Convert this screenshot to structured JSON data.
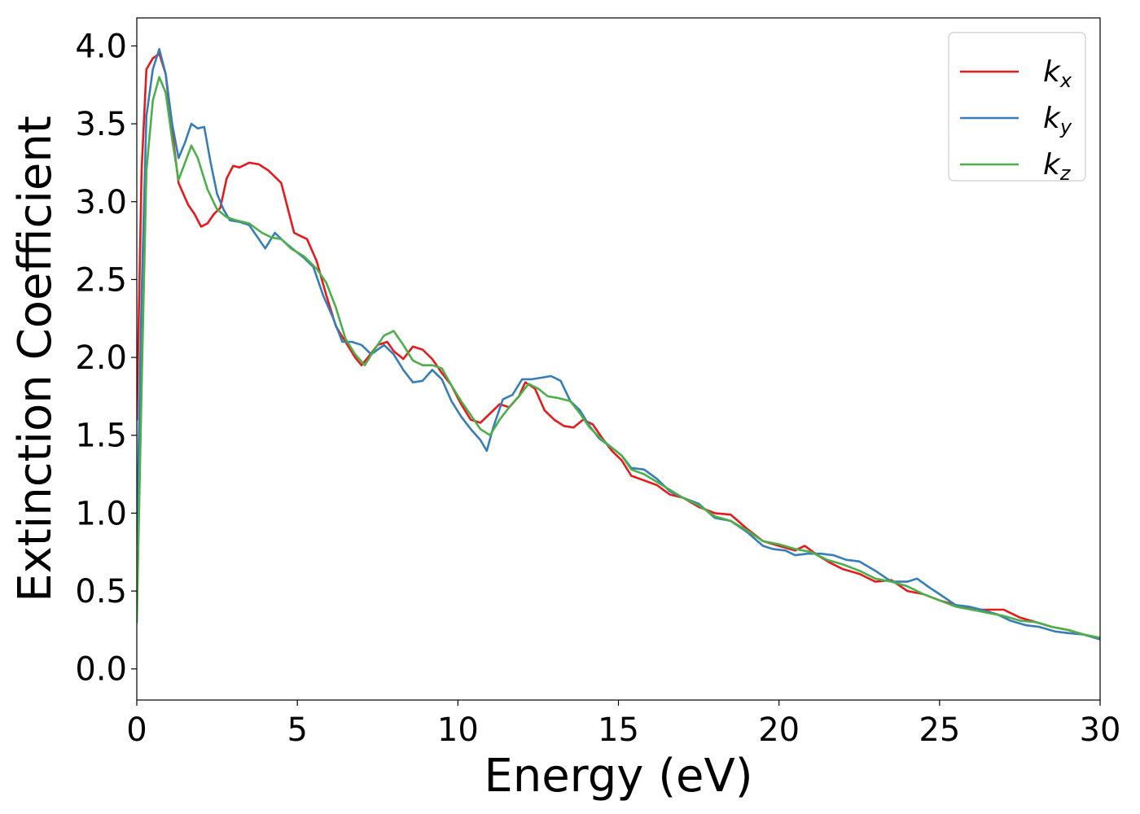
{
  "chart_data": {
    "type": "line",
    "title": "",
    "xlabel": "Energy (eV)",
    "ylabel": "Extinction Coefficient",
    "xlim": [
      0,
      30
    ],
    "ylim": [
      -0.2,
      4.18
    ],
    "xticks": [
      0,
      5,
      10,
      15,
      20,
      25,
      30
    ],
    "xtick_labels": [
      "0",
      "5",
      "10",
      "15",
      "20",
      "25",
      "30"
    ],
    "yticks": [
      0.0,
      0.5,
      1.0,
      1.5,
      2.0,
      2.5,
      3.0,
      3.5,
      4.0
    ],
    "ytick_labels": [
      "0.0",
      "0.5",
      "1.0",
      "1.5",
      "2.0",
      "2.5",
      "3.0",
      "3.5",
      "4.0"
    ],
    "grid": false,
    "legend_position": "top-right",
    "series": [
      {
        "name": "kx",
        "label_main": "k",
        "label_sub": "x",
        "color": "#e41a1c",
        "points": [
          [
            0,
            1.6
          ],
          [
            0.15,
            3.2
          ],
          [
            0.3,
            3.85
          ],
          [
            0.5,
            3.92
          ],
          [
            0.7,
            3.95
          ],
          [
            0.9,
            3.82
          ],
          [
            1.1,
            3.45
          ],
          [
            1.3,
            3.12
          ],
          [
            1.6,
            2.98
          ],
          [
            1.8,
            2.92
          ],
          [
            2.0,
            2.84
          ],
          [
            2.2,
            2.86
          ],
          [
            2.4,
            2.92
          ],
          [
            2.6,
            2.96
          ],
          [
            2.8,
            3.15
          ],
          [
            3.0,
            3.23
          ],
          [
            3.2,
            3.22
          ],
          [
            3.5,
            3.25
          ],
          [
            3.8,
            3.24
          ],
          [
            4.1,
            3.2
          ],
          [
            4.3,
            3.16
          ],
          [
            4.5,
            3.12
          ],
          [
            4.7,
            2.96
          ],
          [
            4.9,
            2.8
          ],
          [
            5.1,
            2.78
          ],
          [
            5.3,
            2.76
          ],
          [
            5.6,
            2.62
          ],
          [
            5.9,
            2.4
          ],
          [
            6.2,
            2.2
          ],
          [
            6.5,
            2.1
          ],
          [
            6.8,
            2.0
          ],
          [
            7.0,
            1.95
          ],
          [
            7.2,
            2.0
          ],
          [
            7.5,
            2.08
          ],
          [
            7.8,
            2.1
          ],
          [
            8.0,
            2.04
          ],
          [
            8.3,
            1.99
          ],
          [
            8.6,
            2.07
          ],
          [
            8.9,
            2.05
          ],
          [
            9.2,
            1.99
          ],
          [
            9.5,
            1.9
          ],
          [
            9.8,
            1.82
          ],
          [
            10.1,
            1.7
          ],
          [
            10.4,
            1.6
          ],
          [
            10.7,
            1.58
          ],
          [
            11.0,
            1.64
          ],
          [
            11.3,
            1.7
          ],
          [
            11.6,
            1.68
          ],
          [
            11.9,
            1.75
          ],
          [
            12.1,
            1.84
          ],
          [
            12.4,
            1.8
          ],
          [
            12.7,
            1.66
          ],
          [
            13.0,
            1.6
          ],
          [
            13.3,
            1.56
          ],
          [
            13.6,
            1.55
          ],
          [
            13.9,
            1.6
          ],
          [
            14.2,
            1.57
          ],
          [
            14.5,
            1.48
          ],
          [
            14.8,
            1.4
          ],
          [
            15.1,
            1.34
          ],
          [
            15.4,
            1.24
          ],
          [
            15.8,
            1.21
          ],
          [
            16.2,
            1.18
          ],
          [
            16.6,
            1.12
          ],
          [
            17.0,
            1.1
          ],
          [
            17.5,
            1.04
          ],
          [
            18.0,
            1.0
          ],
          [
            18.5,
            0.99
          ],
          [
            19.0,
            0.9
          ],
          [
            19.5,
            0.82
          ],
          [
            20.0,
            0.79
          ],
          [
            20.5,
            0.76
          ],
          [
            20.8,
            0.79
          ],
          [
            21.2,
            0.73
          ],
          [
            21.6,
            0.68
          ],
          [
            22.0,
            0.64
          ],
          [
            22.5,
            0.61
          ],
          [
            23.0,
            0.56
          ],
          [
            23.5,
            0.57
          ],
          [
            24.0,
            0.5
          ],
          [
            24.5,
            0.48
          ],
          [
            25.0,
            0.44
          ],
          [
            25.5,
            0.41
          ],
          [
            26.0,
            0.38
          ],
          [
            26.5,
            0.38
          ],
          [
            27.0,
            0.38
          ],
          [
            27.5,
            0.33
          ],
          [
            28.0,
            0.3
          ],
          [
            28.5,
            0.27
          ],
          [
            29.0,
            0.25
          ],
          [
            29.5,
            0.22
          ],
          [
            30.0,
            0.19
          ]
        ]
      },
      {
        "name": "ky",
        "label_main": "k",
        "label_sub": "y",
        "color": "#377eb8",
        "points": [
          [
            0,
            0.8
          ],
          [
            0.15,
            2.4
          ],
          [
            0.3,
            3.55
          ],
          [
            0.5,
            3.85
          ],
          [
            0.7,
            3.98
          ],
          [
            0.9,
            3.82
          ],
          [
            1.1,
            3.5
          ],
          [
            1.3,
            3.28
          ],
          [
            1.5,
            3.38
          ],
          [
            1.7,
            3.5
          ],
          [
            1.9,
            3.47
          ],
          [
            2.1,
            3.48
          ],
          [
            2.3,
            3.25
          ],
          [
            2.5,
            3.05
          ],
          [
            2.7,
            2.95
          ],
          [
            2.9,
            2.88
          ],
          [
            3.2,
            2.87
          ],
          [
            3.5,
            2.85
          ],
          [
            3.8,
            2.76
          ],
          [
            4.0,
            2.7
          ],
          [
            4.3,
            2.8
          ],
          [
            4.6,
            2.74
          ],
          [
            4.9,
            2.69
          ],
          [
            5.2,
            2.64
          ],
          [
            5.5,
            2.58
          ],
          [
            5.8,
            2.4
          ],
          [
            6.1,
            2.26
          ],
          [
            6.4,
            2.1
          ],
          [
            6.7,
            2.1
          ],
          [
            7.0,
            2.08
          ],
          [
            7.3,
            2.02
          ],
          [
            7.7,
            2.08
          ],
          [
            8.0,
            2.02
          ],
          [
            8.3,
            1.92
          ],
          [
            8.6,
            1.84
          ],
          [
            8.9,
            1.85
          ],
          [
            9.2,
            1.92
          ],
          [
            9.5,
            1.86
          ],
          [
            9.8,
            1.72
          ],
          [
            10.1,
            1.62
          ],
          [
            10.4,
            1.54
          ],
          [
            10.7,
            1.47
          ],
          [
            10.9,
            1.4
          ],
          [
            11.1,
            1.55
          ],
          [
            11.4,
            1.73
          ],
          [
            11.7,
            1.76
          ],
          [
            12.0,
            1.86
          ],
          [
            12.3,
            1.86
          ],
          [
            12.6,
            1.87
          ],
          [
            12.9,
            1.88
          ],
          [
            13.2,
            1.85
          ],
          [
            13.5,
            1.72
          ],
          [
            13.8,
            1.66
          ],
          [
            14.1,
            1.56
          ],
          [
            14.4,
            1.48
          ],
          [
            14.8,
            1.42
          ],
          [
            15.1,
            1.37
          ],
          [
            15.4,
            1.29
          ],
          [
            15.8,
            1.28
          ],
          [
            16.2,
            1.22
          ],
          [
            16.6,
            1.14
          ],
          [
            17.0,
            1.1
          ],
          [
            17.5,
            1.06
          ],
          [
            18.0,
            0.97
          ],
          [
            18.5,
            0.95
          ],
          [
            19.0,
            0.88
          ],
          [
            19.5,
            0.79
          ],
          [
            19.8,
            0.77
          ],
          [
            20.2,
            0.76
          ],
          [
            20.5,
            0.73
          ],
          [
            20.9,
            0.74
          ],
          [
            21.3,
            0.74
          ],
          [
            21.7,
            0.73
          ],
          [
            22.1,
            0.7
          ],
          [
            22.5,
            0.69
          ],
          [
            23.0,
            0.63
          ],
          [
            23.5,
            0.56
          ],
          [
            24.0,
            0.56
          ],
          [
            24.3,
            0.58
          ],
          [
            24.7,
            0.52
          ],
          [
            25.0,
            0.48
          ],
          [
            25.5,
            0.41
          ],
          [
            25.9,
            0.4
          ],
          [
            26.3,
            0.38
          ],
          [
            26.8,
            0.35
          ],
          [
            27.2,
            0.31
          ],
          [
            27.7,
            0.28
          ],
          [
            28.1,
            0.27
          ],
          [
            28.6,
            0.24
          ],
          [
            29.0,
            0.23
          ],
          [
            29.5,
            0.22
          ],
          [
            30.0,
            0.19
          ]
        ]
      },
      {
        "name": "kz",
        "label_main": "k",
        "label_sub": "z",
        "color": "#4daf4a",
        "points": [
          [
            0,
            0.3
          ],
          [
            0.15,
            1.8
          ],
          [
            0.3,
            3.2
          ],
          [
            0.5,
            3.65
          ],
          [
            0.7,
            3.8
          ],
          [
            0.9,
            3.7
          ],
          [
            1.1,
            3.4
          ],
          [
            1.3,
            3.14
          ],
          [
            1.5,
            3.25
          ],
          [
            1.7,
            3.36
          ],
          [
            1.9,
            3.28
          ],
          [
            2.2,
            3.08
          ],
          [
            2.5,
            2.95
          ],
          [
            2.8,
            2.9
          ],
          [
            3.1,
            2.88
          ],
          [
            3.5,
            2.86
          ],
          [
            3.9,
            2.8
          ],
          [
            4.2,
            2.77
          ],
          [
            4.5,
            2.76
          ],
          [
            4.8,
            2.7
          ],
          [
            5.2,
            2.65
          ],
          [
            5.6,
            2.57
          ],
          [
            5.9,
            2.48
          ],
          [
            6.2,
            2.32
          ],
          [
            6.5,
            2.12
          ],
          [
            6.8,
            2.02
          ],
          [
            7.1,
            1.95
          ],
          [
            7.4,
            2.05
          ],
          [
            7.7,
            2.14
          ],
          [
            8.0,
            2.17
          ],
          [
            8.3,
            2.08
          ],
          [
            8.6,
            1.98
          ],
          [
            8.9,
            1.95
          ],
          [
            9.2,
            1.95
          ],
          [
            9.5,
            1.93
          ],
          [
            9.8,
            1.82
          ],
          [
            10.1,
            1.72
          ],
          [
            10.4,
            1.63
          ],
          [
            10.7,
            1.54
          ],
          [
            11.0,
            1.5
          ],
          [
            11.3,
            1.6
          ],
          [
            11.6,
            1.68
          ],
          [
            11.9,
            1.75
          ],
          [
            12.2,
            1.83
          ],
          [
            12.5,
            1.8
          ],
          [
            12.8,
            1.75
          ],
          [
            13.1,
            1.74
          ],
          [
            13.5,
            1.72
          ],
          [
            13.8,
            1.64
          ],
          [
            14.1,
            1.55
          ],
          [
            14.5,
            1.47
          ],
          [
            14.8,
            1.42
          ],
          [
            15.1,
            1.37
          ],
          [
            15.4,
            1.28
          ],
          [
            15.8,
            1.25
          ],
          [
            16.2,
            1.2
          ],
          [
            16.6,
            1.15
          ],
          [
            17.0,
            1.1
          ],
          [
            17.5,
            1.05
          ],
          [
            18.0,
            0.98
          ],
          [
            18.5,
            0.95
          ],
          [
            19.0,
            0.89
          ],
          [
            19.5,
            0.82
          ],
          [
            20.0,
            0.8
          ],
          [
            20.5,
            0.77
          ],
          [
            21.0,
            0.75
          ],
          [
            21.5,
            0.7
          ],
          [
            22.0,
            0.67
          ],
          [
            22.5,
            0.63
          ],
          [
            23.0,
            0.58
          ],
          [
            23.5,
            0.56
          ],
          [
            24.0,
            0.53
          ],
          [
            24.5,
            0.48
          ],
          [
            25.0,
            0.44
          ],
          [
            25.5,
            0.4
          ],
          [
            26.0,
            0.38
          ],
          [
            26.5,
            0.36
          ],
          [
            27.0,
            0.34
          ],
          [
            27.5,
            0.31
          ],
          [
            28.0,
            0.3
          ],
          [
            28.5,
            0.27
          ],
          [
            29.0,
            0.25
          ],
          [
            29.5,
            0.22
          ],
          [
            30.0,
            0.2
          ]
        ]
      }
    ]
  }
}
